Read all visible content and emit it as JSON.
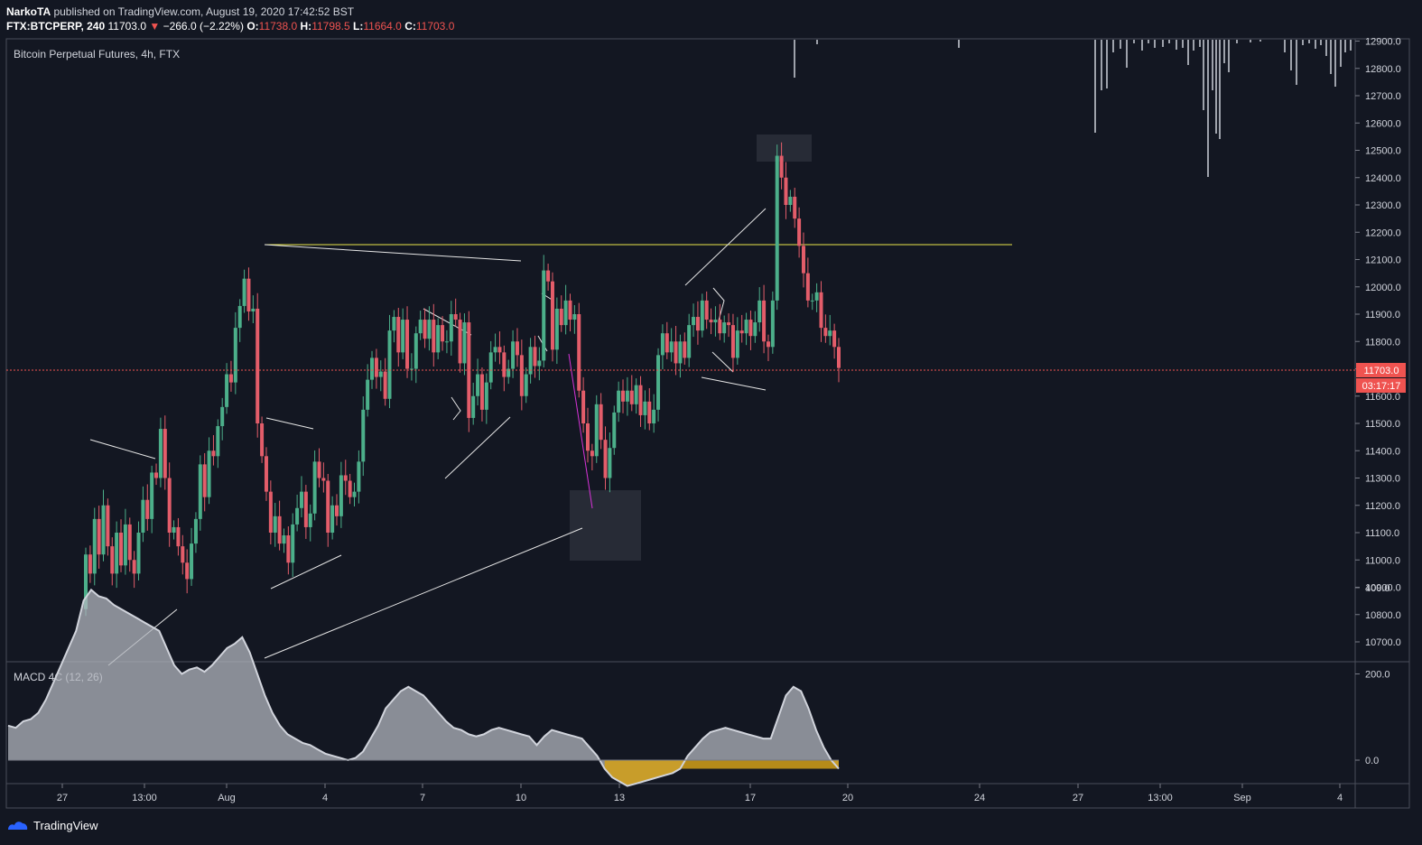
{
  "header": {
    "publisher": "NarkoTA",
    "published_text": " published on TradingView.com, August 19, 2020 17:42:52 BST",
    "symbol": "FTX:BTCPERP, 240",
    "last": "11703.0",
    "change": "−266.0 (−2.22%)",
    "o_label": "O:",
    "o_val": "11738.0",
    "h_label": "H:",
    "h_val": "11798.5",
    "l_label": "L:",
    "l_val": "11664.0",
    "c_label": "C:",
    "c_val": "11703.0"
  },
  "footer": {
    "brand": "TradingView"
  },
  "colors": {
    "bg": "#131722",
    "up": "#26a69a",
    "down": "#ef5350",
    "up_body": "#4caf8a",
    "down_body": "#e35d6a",
    "grid": "#2a2e39",
    "text": "#d1d4dc",
    "price_line": "#ef5350",
    "yellow_line": "#e8e64a",
    "magenta_line": "#d633d6",
    "macd_fill": "#b2b5be",
    "macd_neg": "#d4a017"
  },
  "chart_data": [
    {
      "type": "candlestick",
      "title": "Bitcoin Perpetual Futures, 4h, FTX",
      "ylim": [
        10640,
        12950
      ],
      "y_ticks": [
        10700,
        10800,
        10900,
        11000,
        11100,
        11200,
        11300,
        11400,
        11500,
        11600,
        11700,
        11800,
        11900,
        12000,
        12100,
        12200,
        12300,
        12400,
        12500,
        12600,
        12700,
        12800,
        12900
      ],
      "y_tick_labels": [
        "10700.0",
        "10800.0",
        "10900.0",
        "11000.0",
        "11100.0",
        "11200.0",
        "11300.0",
        "11400.0",
        "11500.0",
        "11600.0",
        "11700.0",
        "11800.0",
        "11900.0",
        "12000.0",
        "12100.0",
        "12200.0",
        "12300.0",
        "12400.0",
        "12500.0",
        "12600.0",
        "12700.0",
        "12800.0",
        "12900.0"
      ],
      "x_ticks": [
        "27",
        "13:00",
        "Aug",
        "4",
        "7",
        "10",
        "13",
        "17",
        "20",
        "24",
        "27",
        "13:00",
        "Sep",
        "4"
      ],
      "last_price": 11703.0,
      "last_price_label": "11703.0",
      "countdown_label": "03:17:17",
      "start_open": 10820,
      "closes": [
        11020,
        10950,
        11150,
        11020,
        11200,
        11050,
        10950,
        11100,
        10980,
        11130,
        11000,
        10950,
        11100,
        11220,
        11150,
        11320,
        11300,
        11480,
        11300,
        11100,
        11120,
        11050,
        10990,
        10930,
        11060,
        11150,
        11350,
        11230,
        11400,
        11380,
        11490,
        11560,
        11680,
        11650,
        11850,
        11930,
        12030,
        11910,
        11920,
        11500,
        11380,
        11250,
        11100,
        11160,
        11060,
        11090,
        10990,
        11130,
        11190,
        11250,
        11120,
        11170,
        11360,
        11300,
        11290,
        11100,
        11200,
        11160,
        11310,
        11290,
        11230,
        11250,
        11360,
        11550,
        11660,
        11740,
        11670,
        11690,
        11590,
        11840,
        11890,
        11760,
        11880,
        11700,
        11700,
        11830,
        11880,
        11810,
        11880,
        11760,
        11860,
        11800,
        11800,
        11900,
        11880,
        11720,
        11870,
        11520,
        11600,
        11680,
        11550,
        11650,
        11760,
        11780,
        11760,
        11670,
        11700,
        11800,
        11750,
        11600,
        11680,
        11780,
        11710,
        11730,
        12060,
        12020,
        11770,
        11920,
        11860,
        11950,
        11880,
        11900,
        11620,
        11500,
        11400,
        11380,
        11570,
        11440,
        11300,
        11410,
        11540,
        11620,
        11580,
        11620,
        11570,
        11640,
        11530,
        11580,
        11500,
        11550,
        11750,
        11830,
        11760,
        11800,
        11720,
        11800,
        11740,
        11860,
        11890,
        11840,
        11950,
        11880,
        11870,
        11880,
        11830,
        11870,
        11860,
        11740,
        11840,
        11830,
        11880,
        11820,
        11870,
        11950,
        11800,
        11780,
        11950,
        12480,
        12400,
        12300,
        12330,
        12250,
        12150,
        12050,
        11950,
        11950,
        11980,
        11850,
        11820,
        11840,
        11780,
        11703
      ]
    },
    {
      "type": "area",
      "title": "MACD 4C (12, 26)",
      "ylim": [
        -60,
        450
      ],
      "y_ticks": [
        0,
        200,
        400
      ],
      "y_tick_labels": [
        "0.0",
        "200.0",
        "400.0"
      ],
      "values": [
        80,
        75,
        90,
        95,
        110,
        140,
        180,
        220,
        260,
        300,
        370,
        395,
        380,
        375,
        360,
        350,
        340,
        330,
        320,
        310,
        300,
        260,
        220,
        200,
        210,
        215,
        205,
        220,
        240,
        260,
        270,
        285,
        250,
        200,
        150,
        110,
        80,
        60,
        50,
        40,
        35,
        25,
        15,
        10,
        5,
        0,
        5,
        20,
        50,
        80,
        120,
        140,
        160,
        170,
        160,
        150,
        130,
        110,
        90,
        75,
        70,
        60,
        55,
        60,
        70,
        75,
        70,
        65,
        60,
        55,
        35,
        55,
        70,
        65,
        60,
        55,
        50,
        30,
        10,
        -20,
        -40,
        -50,
        -60,
        -55,
        -50,
        -45,
        -40,
        -35,
        -30,
        -20,
        10,
        30,
        50,
        65,
        70,
        75,
        70,
        65,
        60,
        55,
        50,
        50,
        100,
        150,
        170,
        160,
        120,
        70,
        30,
        0,
        -20
      ]
    }
  ]
}
